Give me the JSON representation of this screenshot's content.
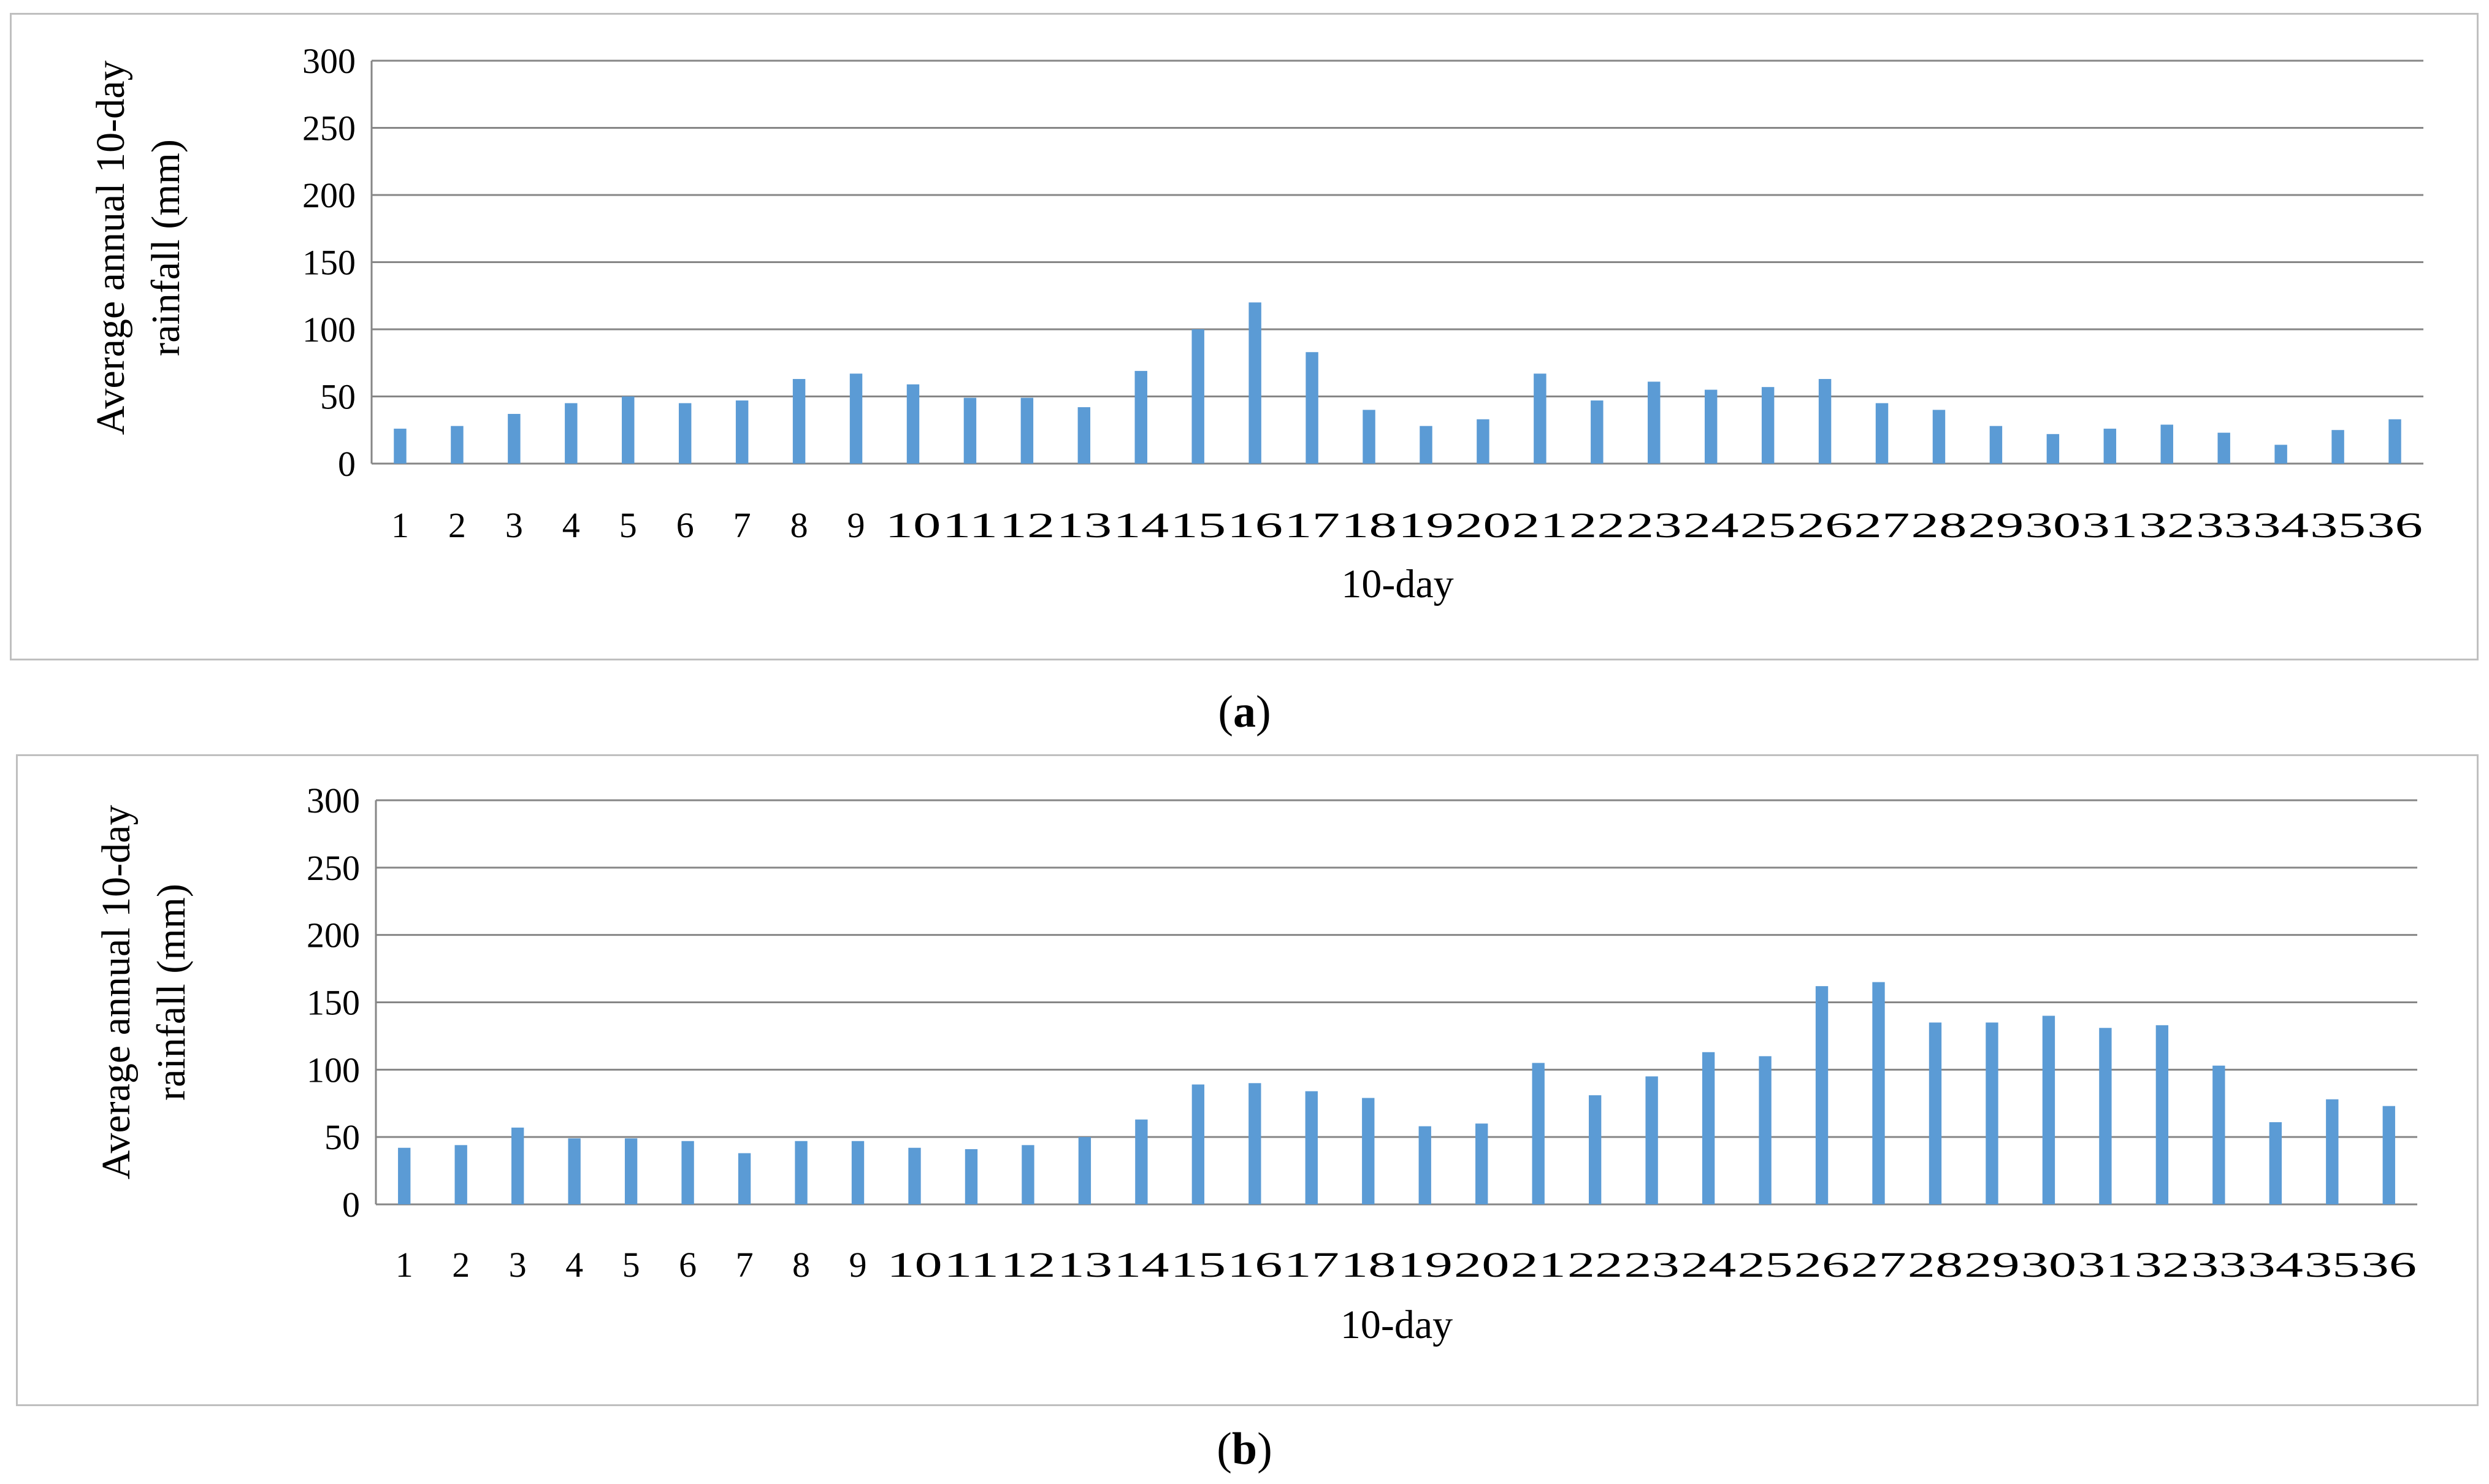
{
  "captions": {
    "a": {
      "open": "(",
      "letter": "a",
      "close": ")"
    },
    "b": {
      "open": "(",
      "letter": "b",
      "close": ")"
    }
  },
  "style": {
    "bar_color": "#5b9bd5",
    "grid_color": "#868686"
  },
  "chart_data": [
    {
      "type": "bar",
      "panel": "a",
      "xlabel": "10-day",
      "ylabel_lines": [
        "Average annual 10-day",
        "rainfall (mm)"
      ],
      "ylim": [
        0,
        300
      ],
      "yticks": [
        0,
        50,
        100,
        150,
        200,
        250,
        300
      ],
      "grid": true,
      "categories": [
        "1",
        "2",
        "3",
        "4",
        "5",
        "6",
        "7",
        "8",
        "9",
        "10",
        "11",
        "12",
        "13",
        "14",
        "15",
        "16",
        "17",
        "18",
        "19",
        "20",
        "21",
        "22",
        "23",
        "24",
        "25",
        "26",
        "27",
        "28",
        "29",
        "30",
        "31",
        "32",
        "33",
        "34",
        "35",
        "36"
      ],
      "values": [
        26,
        28,
        37,
        45,
        50,
        45,
        47,
        63,
        67,
        59,
        49,
        49,
        42,
        69,
        100,
        120,
        83,
        40,
        28,
        33,
        67,
        47,
        61,
        55,
        57,
        63,
        45,
        40,
        28,
        22,
        26,
        29,
        23,
        14,
        25,
        33
      ]
    },
    {
      "type": "bar",
      "panel": "b",
      "xlabel": "10-day",
      "ylabel_lines": [
        "Average annual 10-day",
        "rainfall (mm)"
      ],
      "ylim": [
        0,
        300
      ],
      "yticks": [
        0,
        50,
        100,
        150,
        200,
        250,
        300
      ],
      "grid": true,
      "categories": [
        "1",
        "2",
        "3",
        "4",
        "5",
        "6",
        "7",
        "8",
        "9",
        "10",
        "11",
        "12",
        "13",
        "14",
        "15",
        "16",
        "17",
        "18",
        "19",
        "20",
        "21",
        "22",
        "23",
        "24",
        "25",
        "26",
        "27",
        "28",
        "29",
        "30",
        "31",
        "32",
        "33",
        "34",
        "35",
        "36"
      ],
      "values": [
        42,
        44,
        57,
        49,
        49,
        47,
        38,
        47,
        47,
        42,
        41,
        44,
        50,
        63,
        89,
        90,
        84,
        79,
        58,
        60,
        105,
        81,
        95,
        113,
        110,
        162,
        165,
        135,
        135,
        140,
        131,
        133,
        103,
        61,
        78,
        73
      ]
    }
  ]
}
